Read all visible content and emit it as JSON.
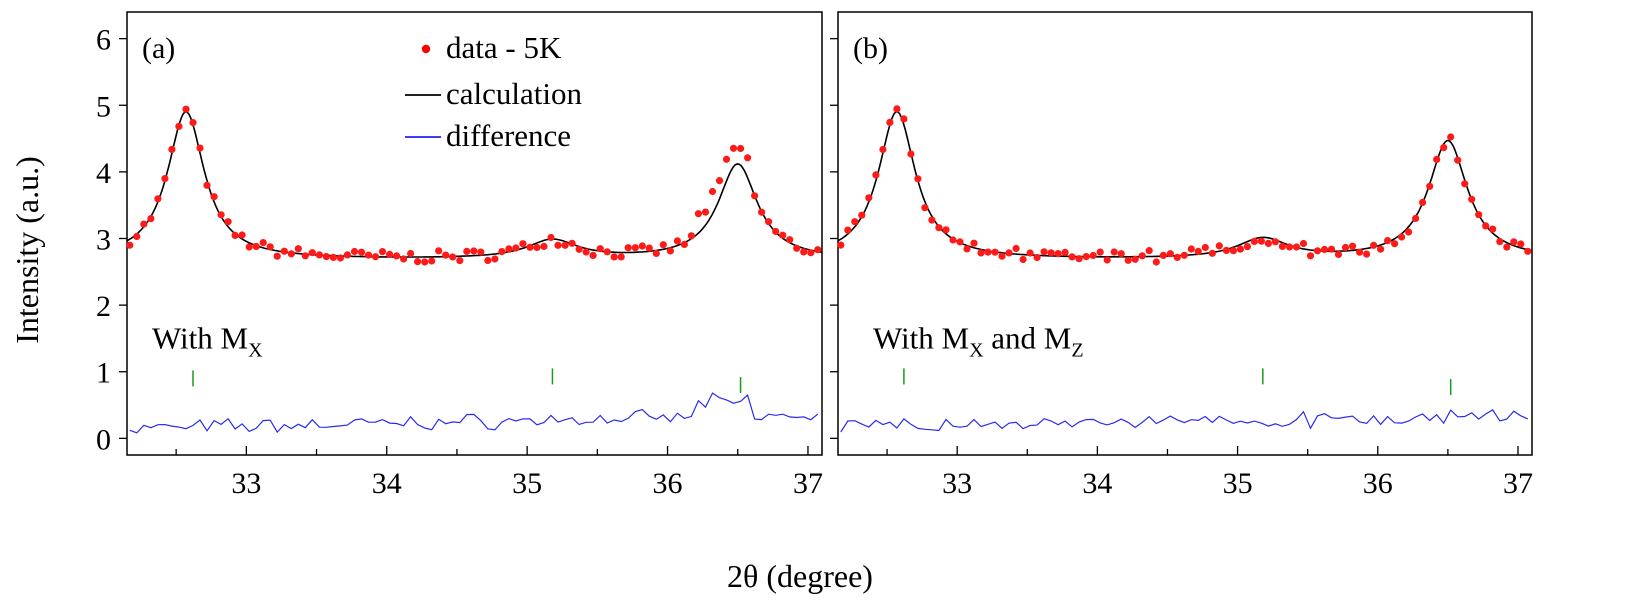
{
  "chart_data": {
    "type": "line",
    "ylabel": "Intensity (a.u.)",
    "xlabel": "2θ (degree)",
    "xlim": [
      32.15,
      37.1
    ],
    "ylim": [
      -0.25,
      6.4
    ],
    "x_ticks": [
      "33",
      "34",
      "35",
      "36",
      "37"
    ],
    "y_ticks": [
      "0",
      "1",
      "2",
      "3",
      "4",
      "5",
      "6"
    ],
    "legend": {
      "placement": "top-center of panel (a)",
      "entries": [
        {
          "label": "data - 5K",
          "color": "#ff0000",
          "marker": "dot"
        },
        {
          "label": "calculation",
          "color": "#000000",
          "marker": "line"
        },
        {
          "label": "difference",
          "color": "#2222ee",
          "marker": "line"
        }
      ]
    },
    "panels": [
      {
        "label": "(a)",
        "annotation": {
          "text": "With M",
          "sub1": "X",
          "mid": "",
          "sub2": ""
        },
        "background": 2.68,
        "peaks": [
          {
            "center": 32.57,
            "height": 2.22,
            "width": 0.16
          },
          {
            "center": 35.18,
            "height": 0.28,
            "width": 0.22
          },
          {
            "center": 36.5,
            "height": 1.43,
            "width": 0.17
          }
        ],
        "bragg_ticks": [
          32.62,
          35.18,
          36.52
        ],
        "bragg_tick_heights": [
          0.9,
          0.93,
          0.8
        ],
        "diff_offset": 0.15,
        "seed": 7
      },
      {
        "label": "(b)",
        "annotation": {
          "text": "With M",
          "sub1": "X",
          "mid": " and M",
          "sub2": "Z"
        },
        "background": 2.68,
        "peaks": [
          {
            "center": 32.57,
            "height": 2.22,
            "width": 0.16
          },
          {
            "center": 35.18,
            "height": 0.3,
            "width": 0.22
          },
          {
            "center": 36.5,
            "height": 1.78,
            "width": 0.17
          }
        ],
        "bragg_ticks": [
          32.62,
          35.18,
          36.52
        ],
        "bragg_tick_heights": [
          0.93,
          0.93,
          0.77
        ],
        "diff_offset": 0.15,
        "seed": 13
      }
    ]
  }
}
